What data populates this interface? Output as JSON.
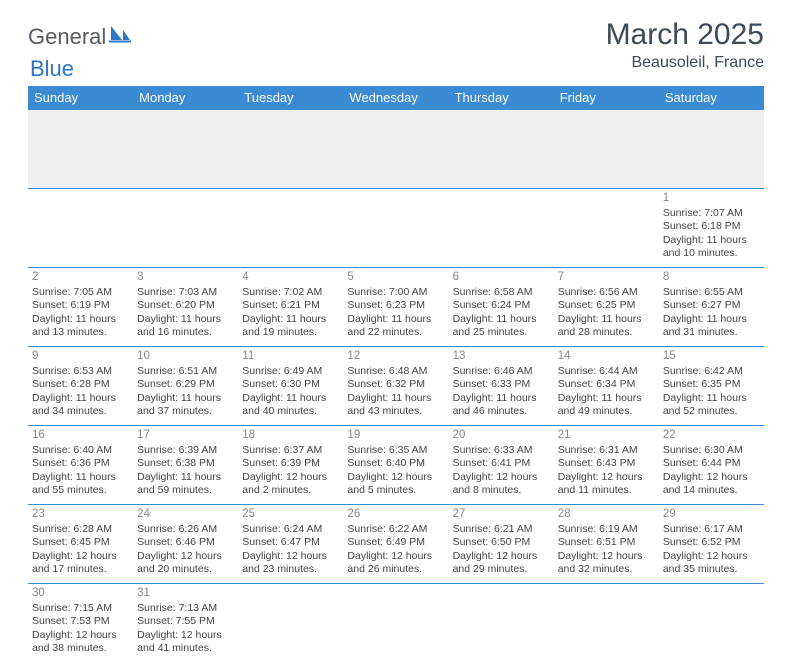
{
  "logo": {
    "general": "General",
    "blue": "Blue"
  },
  "title": "March 2025",
  "location": "Beausoleil, France",
  "colors": {
    "header_bg": "#3b8bd4",
    "header_fg": "#ffffff",
    "rule": "#3b8bd4",
    "daynum": "#888888",
    "text": "#444444",
    "title": "#3d4a57",
    "logo_gray": "#555b60",
    "logo_blue": "#2e75c4",
    "empty_bg": "#efefef"
  },
  "weekdays": [
    "Sunday",
    "Monday",
    "Tuesday",
    "Wednesday",
    "Thursday",
    "Friday",
    "Saturday"
  ],
  "grid": [
    [
      null,
      null,
      null,
      null,
      null,
      null,
      {
        "n": "1",
        "sr": "7:07 AM",
        "ss": "6:18 PM",
        "dl": "11 hours and 10 minutes."
      }
    ],
    [
      {
        "n": "2",
        "sr": "7:05 AM",
        "ss": "6:19 PM",
        "dl": "11 hours and 13 minutes."
      },
      {
        "n": "3",
        "sr": "7:03 AM",
        "ss": "6:20 PM",
        "dl": "11 hours and 16 minutes."
      },
      {
        "n": "4",
        "sr": "7:02 AM",
        "ss": "6:21 PM",
        "dl": "11 hours and 19 minutes."
      },
      {
        "n": "5",
        "sr": "7:00 AM",
        "ss": "6:23 PM",
        "dl": "11 hours and 22 minutes."
      },
      {
        "n": "6",
        "sr": "6:58 AM",
        "ss": "6:24 PM",
        "dl": "11 hours and 25 minutes."
      },
      {
        "n": "7",
        "sr": "6:56 AM",
        "ss": "6:25 PM",
        "dl": "11 hours and 28 minutes."
      },
      {
        "n": "8",
        "sr": "6:55 AM",
        "ss": "6:27 PM",
        "dl": "11 hours and 31 minutes."
      }
    ],
    [
      {
        "n": "9",
        "sr": "6:53 AM",
        "ss": "6:28 PM",
        "dl": "11 hours and 34 minutes."
      },
      {
        "n": "10",
        "sr": "6:51 AM",
        "ss": "6:29 PM",
        "dl": "11 hours and 37 minutes."
      },
      {
        "n": "11",
        "sr": "6:49 AM",
        "ss": "6:30 PM",
        "dl": "11 hours and 40 minutes."
      },
      {
        "n": "12",
        "sr": "6:48 AM",
        "ss": "6:32 PM",
        "dl": "11 hours and 43 minutes."
      },
      {
        "n": "13",
        "sr": "6:46 AM",
        "ss": "6:33 PM",
        "dl": "11 hours and 46 minutes."
      },
      {
        "n": "14",
        "sr": "6:44 AM",
        "ss": "6:34 PM",
        "dl": "11 hours and 49 minutes."
      },
      {
        "n": "15",
        "sr": "6:42 AM",
        "ss": "6:35 PM",
        "dl": "11 hours and 52 minutes."
      }
    ],
    [
      {
        "n": "16",
        "sr": "6:40 AM",
        "ss": "6:36 PM",
        "dl": "11 hours and 55 minutes."
      },
      {
        "n": "17",
        "sr": "6:39 AM",
        "ss": "6:38 PM",
        "dl": "11 hours and 59 minutes."
      },
      {
        "n": "18",
        "sr": "6:37 AM",
        "ss": "6:39 PM",
        "dl": "12 hours and 2 minutes."
      },
      {
        "n": "19",
        "sr": "6:35 AM",
        "ss": "6:40 PM",
        "dl": "12 hours and 5 minutes."
      },
      {
        "n": "20",
        "sr": "6:33 AM",
        "ss": "6:41 PM",
        "dl": "12 hours and 8 minutes."
      },
      {
        "n": "21",
        "sr": "6:31 AM",
        "ss": "6:43 PM",
        "dl": "12 hours and 11 minutes."
      },
      {
        "n": "22",
        "sr": "6:30 AM",
        "ss": "6:44 PM",
        "dl": "12 hours and 14 minutes."
      }
    ],
    [
      {
        "n": "23",
        "sr": "6:28 AM",
        "ss": "6:45 PM",
        "dl": "12 hours and 17 minutes."
      },
      {
        "n": "24",
        "sr": "6:26 AM",
        "ss": "6:46 PM",
        "dl": "12 hours and 20 minutes."
      },
      {
        "n": "25",
        "sr": "6:24 AM",
        "ss": "6:47 PM",
        "dl": "12 hours and 23 minutes."
      },
      {
        "n": "26",
        "sr": "6:22 AM",
        "ss": "6:49 PM",
        "dl": "12 hours and 26 minutes."
      },
      {
        "n": "27",
        "sr": "6:21 AM",
        "ss": "6:50 PM",
        "dl": "12 hours and 29 minutes."
      },
      {
        "n": "28",
        "sr": "6:19 AM",
        "ss": "6:51 PM",
        "dl": "12 hours and 32 minutes."
      },
      {
        "n": "29",
        "sr": "6:17 AM",
        "ss": "6:52 PM",
        "dl": "12 hours and 35 minutes."
      }
    ],
    [
      {
        "n": "30",
        "sr": "7:15 AM",
        "ss": "7:53 PM",
        "dl": "12 hours and 38 minutes."
      },
      {
        "n": "31",
        "sr": "7:13 AM",
        "ss": "7:55 PM",
        "dl": "12 hours and 41 minutes."
      },
      null,
      null,
      null,
      null,
      null
    ]
  ],
  "labels": {
    "sunrise": "Sunrise:",
    "sunset": "Sunset:",
    "daylight": "Daylight:"
  }
}
